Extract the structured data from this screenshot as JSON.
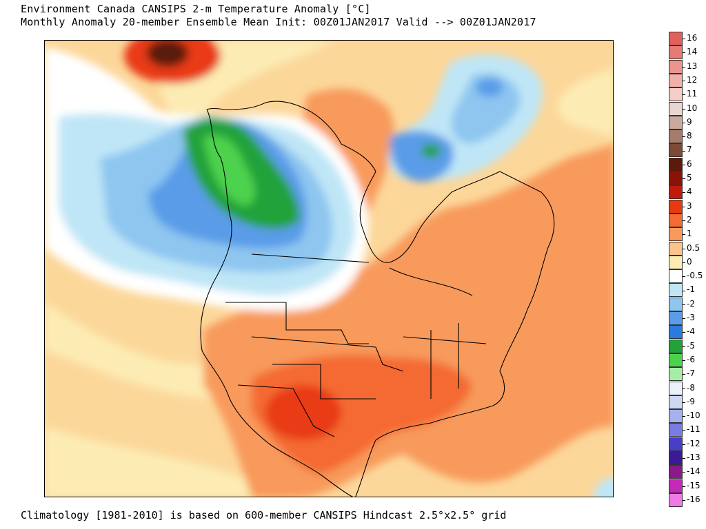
{
  "header": {
    "title_line1": "Environment Canada CANSIPS 2-m Temperature Anomaly [°C]",
    "title_line2": "Monthly Anomaly 20-member Ensemble Mean Init: 00Z01JAN2017 Valid --> 00Z01JAN2017"
  },
  "footer": {
    "note": "Climatology [1981-2010] is based on 600-member CANSIPS Hindcast 2.5°x2.5° grid"
  },
  "legend": {
    "levels": [
      {
        "label": "16",
        "color": "#e0605c"
      },
      {
        "label": "14",
        "color": "#e67a74"
      },
      {
        "label": "13",
        "color": "#ec948e"
      },
      {
        "label": "12",
        "color": "#f2b0aa"
      },
      {
        "label": "11",
        "color": "#f7cdc8"
      },
      {
        "label": "10",
        "color": "#e8d6d0"
      },
      {
        "label": "9",
        "color": "#c9aa9c"
      },
      {
        "label": "8",
        "color": "#a57d6c"
      },
      {
        "label": "7",
        "color": "#7e4a38"
      },
      {
        "label": "6",
        "color": "#5a1a0c"
      },
      {
        "label": "5",
        "color": "#8c1208"
      },
      {
        "label": "4",
        "color": "#c01a0c"
      },
      {
        "label": "3",
        "color": "#e83a12"
      },
      {
        "label": "2",
        "color": "#f46a32"
      },
      {
        "label": "1",
        "color": "#f89a5c"
      },
      {
        "label": "0.5",
        "color": "#fbc48a"
      },
      {
        "label": "0",
        "color": "#fcecb4"
      },
      {
        "label": "-0.5",
        "color": "#ffffff"
      },
      {
        "label": "-1",
        "color": "#bfe6f6"
      },
      {
        "label": "-2",
        "color": "#8ec6f0"
      },
      {
        "label": "-3",
        "color": "#5a9ce8"
      },
      {
        "label": "-4",
        "color": "#2a7ae0"
      },
      {
        "label": "-5",
        "color": "#22a23a"
      },
      {
        "label": "-6",
        "color": "#4ed24e"
      },
      {
        "label": "-7",
        "color": "#a6eea6"
      },
      {
        "label": "-8",
        "color": "#ecf2fa"
      },
      {
        "label": "-9",
        "color": "#cdd8f2"
      },
      {
        "label": "-10",
        "color": "#a6b2ee"
      },
      {
        "label": "-11",
        "color": "#7a7ce6"
      },
      {
        "label": "-12",
        "color": "#4a3ec8"
      },
      {
        "label": "-13",
        "color": "#3a1a96"
      },
      {
        "label": "-14",
        "color": "#8a1a8a"
      },
      {
        "label": "-15",
        "color": "#c42ab8"
      },
      {
        "label": "-16",
        "color": "#f078e6"
      }
    ]
  },
  "map": {
    "ocean_color": "#fcd79a",
    "outline_color": "#000000"
  }
}
